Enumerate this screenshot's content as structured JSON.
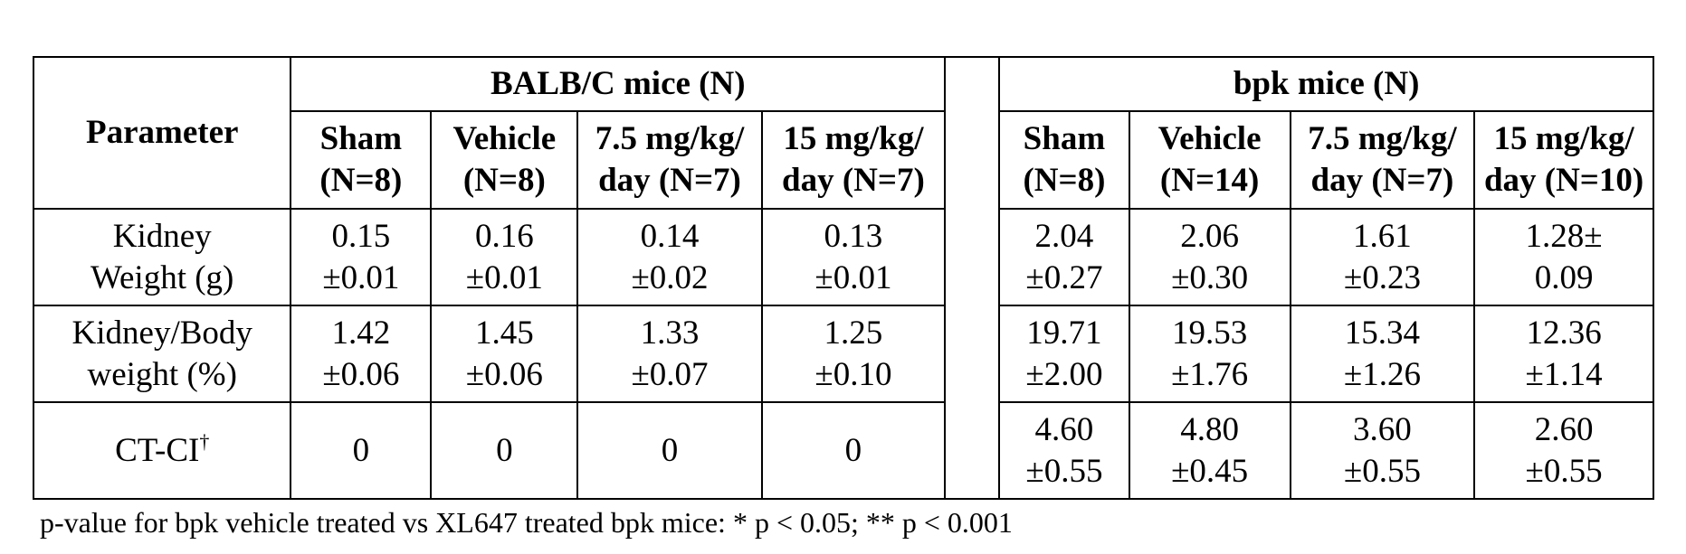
{
  "table": {
    "parameter_header": "Parameter",
    "groups": [
      {
        "name": "BALB/C mice (N)"
      },
      {
        "name": "bpk mice (N)"
      }
    ],
    "subheaders": [
      [
        "Sham",
        "(N=8)"
      ],
      [
        "Vehicle",
        "(N=8)"
      ],
      [
        "7.5 mg/kg/",
        "day (N=7)"
      ],
      [
        "15 mg/kg/",
        "day (N=7)"
      ],
      [
        "Sham",
        "(N=8)"
      ],
      [
        "Vehicle",
        "(N=14)"
      ],
      [
        "7.5 mg/kg/",
        "day (N=7)"
      ],
      [
        "15 mg/kg/",
        "day (N=10)"
      ]
    ],
    "rows": [
      {
        "label": [
          "Kidney",
          "Weight (g)"
        ],
        "values": [
          [
            "0.15",
            "±0.01"
          ],
          [
            "0.16",
            "±0.01"
          ],
          [
            "0.14",
            "±0.02"
          ],
          [
            "0.13",
            "±0.01"
          ],
          [
            "2.04",
            "±0.27"
          ],
          [
            "2.06",
            "±0.30"
          ],
          [
            "1.61",
            "±0.23"
          ],
          [
            "1.28±",
            "0.09"
          ]
        ]
      },
      {
        "label": [
          "Kidney/Body",
          "weight (%)"
        ],
        "values": [
          [
            "1.42",
            "±0.06"
          ],
          [
            "1.45",
            "±0.06"
          ],
          [
            "1.33",
            "±0.07"
          ],
          [
            "1.25",
            "±0.10"
          ],
          [
            "19.71",
            "±2.00"
          ],
          [
            "19.53",
            "±1.76"
          ],
          [
            "15.34",
            "±1.26"
          ],
          [
            "12.36",
            "±1.14"
          ]
        ]
      },
      {
        "label": [
          "CT-CI"
        ],
        "label_sup": "†",
        "values": [
          [
            "0"
          ],
          [
            "0"
          ],
          [
            "0"
          ],
          [
            "0"
          ],
          [
            "4.60",
            "±0.55"
          ],
          [
            "4.80",
            "±0.45"
          ],
          [
            "3.60",
            "±0.55"
          ],
          [
            "2.60",
            "±0.55"
          ]
        ]
      }
    ]
  },
  "footnote": "p-value for bpk vehicle treated vs XL647 treated bpk mice: * p < 0.05; ** p < 0.001"
}
